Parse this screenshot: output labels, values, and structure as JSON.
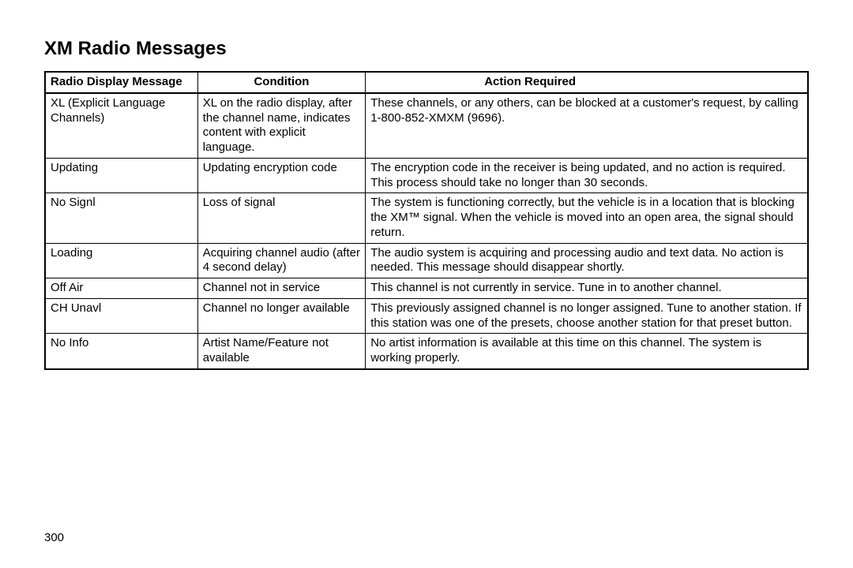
{
  "page": {
    "title": "XM Radio Messages",
    "number": "300"
  },
  "table": {
    "columns": [
      "Radio Display Message",
      "Condition",
      "Action Required"
    ],
    "rows": [
      {
        "msg": "XL (Explicit Language Channels)",
        "cond": "XL on the radio display, after the channel name, indicates content with explicit language.",
        "act": "These channels, or any others, can be blocked at a customer's request, by calling 1-800-852-XMXM (9696)."
      },
      {
        "msg": "Updating",
        "cond": "Updating encryption code",
        "act": "The encryption code in the receiver is being updated, and no action is required. This process should take no longer than 30 seconds."
      },
      {
        "msg": "No Signl",
        "cond": "Loss of signal",
        "act": "The system is functioning correctly, but the vehicle is in a location that is blocking the XM™ signal. When the vehicle is moved into an open area, the signal should return."
      },
      {
        "msg": "Loading",
        "cond": "Acquiring channel audio (after 4 second delay)",
        "act": "The audio system is acquiring and processing audio and text data. No action is needed. This message should disappear shortly."
      },
      {
        "msg": "Off Air",
        "cond": "Channel not in service",
        "act": "This channel is not currently in service. Tune in to another channel."
      },
      {
        "msg": "CH Unavl",
        "cond": "Channel no longer available",
        "act": "This previously assigned channel is no longer assigned. Tune to another station. If this station was one of the presets, choose another station for that preset button."
      },
      {
        "msg": "No Info",
        "cond": "Artist Name/Feature not available",
        "act": "No artist information is available at this time on this channel. The system is working properly."
      }
    ]
  }
}
